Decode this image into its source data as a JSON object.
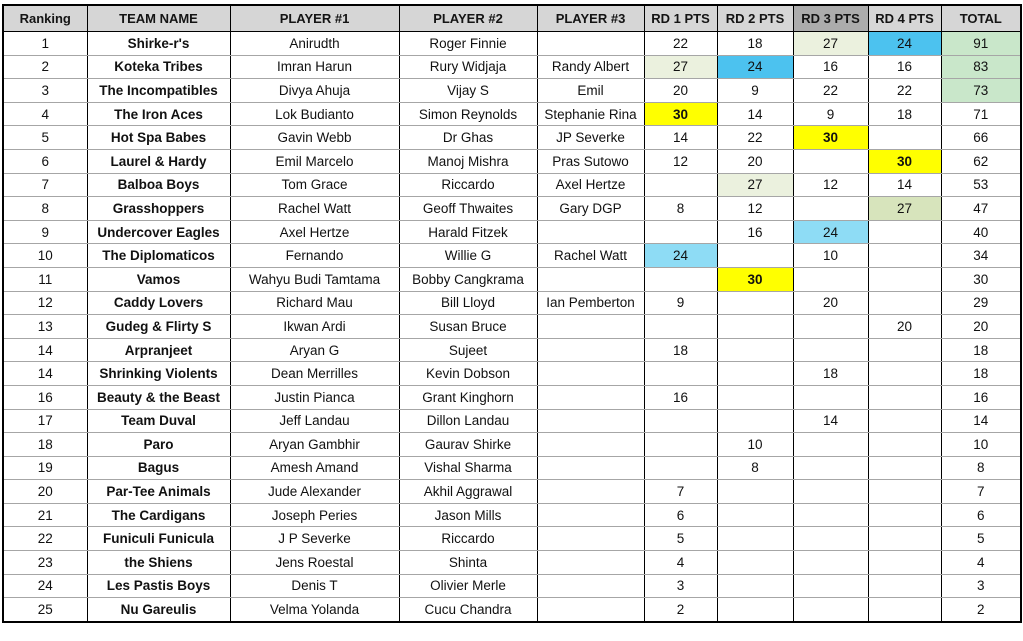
{
  "colors": {
    "header_bg": "#d6d6d6",
    "header_bg_active": "#acacac",
    "yellow": "#ffff00",
    "sky_blue": "#4cc2ef",
    "light_blue": "#8edcf5",
    "pale_green": "#ebf1de",
    "mid_green": "#d7e4bc",
    "total_green": "#c9e7ca",
    "grid_dark": "#000000",
    "grid_light": "#a6a6a6"
  },
  "table": {
    "columns": [
      {
        "key": "rank",
        "label": "Ranking"
      },
      {
        "key": "team",
        "label": "TEAM NAME"
      },
      {
        "key": "p1",
        "label": "PLAYER #1"
      },
      {
        "key": "p2",
        "label": "PLAYER #2"
      },
      {
        "key": "p3",
        "label": "PLAYER #3"
      },
      {
        "key": "rd1",
        "label": "RD 1 PTS"
      },
      {
        "key": "rd2",
        "label": "RD 2 PTS"
      },
      {
        "key": "rd3",
        "label": "RD 3 PTS",
        "variant": "active"
      },
      {
        "key": "rd4",
        "label": "RD 4 PTS"
      },
      {
        "key": "total",
        "label": "TOTAL"
      }
    ],
    "rows": [
      {
        "rank": "1",
        "team": "Shirke-r's",
        "p1": "Anirudth",
        "p2": "Roger Finnie",
        "p3": "",
        "rd1": {
          "v": "22"
        },
        "rd2": {
          "v": "18"
        },
        "rd3": {
          "v": "27",
          "hl": "pale_green"
        },
        "rd4": {
          "v": "24",
          "hl": "sky_blue"
        },
        "total": {
          "v": "91",
          "hl": "total_green"
        }
      },
      {
        "rank": "2",
        "team": "Koteka Tribes",
        "p1": "Imran Harun",
        "p2": "Rury Widjaja",
        "p3": "Randy Albert",
        "rd1": {
          "v": "27",
          "hl": "pale_green"
        },
        "rd2": {
          "v": "24",
          "hl": "sky_blue"
        },
        "rd3": {
          "v": "16"
        },
        "rd4": {
          "v": "16"
        },
        "total": {
          "v": "83",
          "hl": "total_green"
        }
      },
      {
        "rank": "3",
        "team": "The Incompatibles",
        "p1": "Divya Ahuja",
        "p2": "Vijay S",
        "p3": "Emil",
        "rd1": {
          "v": "20"
        },
        "rd2": {
          "v": "9"
        },
        "rd3": {
          "v": "22"
        },
        "rd4": {
          "v": "22"
        },
        "total": {
          "v": "73",
          "hl": "total_green"
        }
      },
      {
        "rank": "4",
        "team": "The Iron Aces",
        "p1": "Lok Budianto",
        "p2": "Simon Reynolds",
        "p3": "Stephanie Rina",
        "rd1": {
          "v": "30",
          "hl": "yellow"
        },
        "rd2": {
          "v": "14"
        },
        "rd3": {
          "v": "9"
        },
        "rd4": {
          "v": "18"
        },
        "total": {
          "v": "71"
        }
      },
      {
        "rank": "5",
        "team": "Hot Spa Babes",
        "p1": "Gavin Webb",
        "p2": "Dr Ghas",
        "p3": "JP Severke",
        "rd1": {
          "v": "14"
        },
        "rd2": {
          "v": "22"
        },
        "rd3": {
          "v": "30",
          "hl": "yellow"
        },
        "rd4": {
          "v": ""
        },
        "total": {
          "v": "66"
        }
      },
      {
        "rank": "6",
        "team": "Laurel & Hardy",
        "p1": "Emil Marcelo",
        "p2": "Manoj Mishra",
        "p3": "Pras Sutowo",
        "rd1": {
          "v": "12"
        },
        "rd2": {
          "v": "20"
        },
        "rd3": {
          "v": ""
        },
        "rd4": {
          "v": "30",
          "hl": "yellow"
        },
        "total": {
          "v": "62"
        }
      },
      {
        "rank": "7",
        "team": "Balboa Boys",
        "p1": "Tom Grace",
        "p2": "Riccardo",
        "p3": "Axel Hertze",
        "rd1": {
          "v": ""
        },
        "rd2": {
          "v": "27",
          "hl": "pale_green"
        },
        "rd3": {
          "v": "12"
        },
        "rd4": {
          "v": "14"
        },
        "total": {
          "v": "53"
        }
      },
      {
        "rank": "8",
        "team": "Grasshoppers",
        "p1": "Rachel Watt",
        "p2": "Geoff Thwaites",
        "p3": "Gary DGP",
        "rd1": {
          "v": "8"
        },
        "rd2": {
          "v": "12"
        },
        "rd3": {
          "v": ""
        },
        "rd4": {
          "v": "27",
          "hl": "mid_green"
        },
        "total": {
          "v": "47"
        }
      },
      {
        "rank": "9",
        "team": "Undercover Eagles",
        "p1": "Axel Hertze",
        "p2": "Harald Fitzek",
        "p3": "",
        "rd1": {
          "v": ""
        },
        "rd2": {
          "v": "16"
        },
        "rd3": {
          "v": "24",
          "hl": "light_blue"
        },
        "rd4": {
          "v": ""
        },
        "total": {
          "v": "40"
        }
      },
      {
        "rank": "10",
        "team": "The Diplomaticos",
        "p1": "Fernando",
        "p2": "Willie G",
        "p3": "Rachel Watt",
        "rd1": {
          "v": "24",
          "hl": "light_blue"
        },
        "rd2": {
          "v": ""
        },
        "rd3": {
          "v": "10"
        },
        "rd4": {
          "v": ""
        },
        "total": {
          "v": "34"
        }
      },
      {
        "rank": "11",
        "team": "Vamos",
        "p1": "Wahyu Budi Tamtama",
        "p2": "Bobby Cangkrama",
        "p3": "",
        "rd1": {
          "v": ""
        },
        "rd2": {
          "v": "30",
          "hl": "yellow"
        },
        "rd3": {
          "v": ""
        },
        "rd4": {
          "v": ""
        },
        "total": {
          "v": "30"
        }
      },
      {
        "rank": "12",
        "team": "Caddy Lovers",
        "p1": "Richard Mau",
        "p2": "Bill Lloyd",
        "p3": "Ian Pemberton",
        "rd1": {
          "v": "9"
        },
        "rd2": {
          "v": ""
        },
        "rd3": {
          "v": "20"
        },
        "rd4": {
          "v": ""
        },
        "total": {
          "v": "29"
        }
      },
      {
        "rank": "13",
        "team": "Gudeg & Flirty S",
        "p1": "Ikwan Ardi",
        "p2": "Susan Bruce",
        "p3": "",
        "rd1": {
          "v": ""
        },
        "rd2": {
          "v": ""
        },
        "rd3": {
          "v": ""
        },
        "rd4": {
          "v": "20"
        },
        "total": {
          "v": "20"
        }
      },
      {
        "rank": "14",
        "team": "Arpranjeet",
        "p1": "Aryan G",
        "p2": "Sujeet",
        "p3": "",
        "rd1": {
          "v": "18"
        },
        "rd2": {
          "v": ""
        },
        "rd3": {
          "v": ""
        },
        "rd4": {
          "v": ""
        },
        "total": {
          "v": "18"
        }
      },
      {
        "rank": "14",
        "team": "Shrinking Violents",
        "p1": "Dean Merrilles",
        "p2": "Kevin Dobson",
        "p3": "",
        "rd1": {
          "v": ""
        },
        "rd2": {
          "v": ""
        },
        "rd3": {
          "v": "18"
        },
        "rd4": {
          "v": ""
        },
        "total": {
          "v": "18"
        }
      },
      {
        "rank": "16",
        "team": "Beauty & the Beast",
        "p1": "Justin Pianca",
        "p2": "Grant Kinghorn",
        "p3": "",
        "rd1": {
          "v": "16"
        },
        "rd2": {
          "v": ""
        },
        "rd3": {
          "v": ""
        },
        "rd4": {
          "v": ""
        },
        "total": {
          "v": "16"
        }
      },
      {
        "rank": "17",
        "team": "Team Duval",
        "p1": "Jeff Landau",
        "p2": "Dillon Landau",
        "p3": "",
        "rd1": {
          "v": ""
        },
        "rd2": {
          "v": ""
        },
        "rd3": {
          "v": "14"
        },
        "rd4": {
          "v": ""
        },
        "total": {
          "v": "14"
        }
      },
      {
        "rank": "18",
        "team": "Paro",
        "p1": "Aryan Gambhir",
        "p2": "Gaurav Shirke",
        "p3": "",
        "rd1": {
          "v": ""
        },
        "rd2": {
          "v": "10"
        },
        "rd3": {
          "v": ""
        },
        "rd4": {
          "v": ""
        },
        "total": {
          "v": "10"
        }
      },
      {
        "rank": "19",
        "team": "Bagus",
        "p1": "Amesh Amand",
        "p2": "Vishal Sharma",
        "p3": "",
        "rd1": {
          "v": ""
        },
        "rd2": {
          "v": "8"
        },
        "rd3": {
          "v": ""
        },
        "rd4": {
          "v": ""
        },
        "total": {
          "v": "8"
        }
      },
      {
        "rank": "20",
        "team": "Par-Tee Animals",
        "p1": "Jude Alexander",
        "p2": "Akhil Aggrawal",
        "p3": "",
        "rd1": {
          "v": "7"
        },
        "rd2": {
          "v": ""
        },
        "rd3": {
          "v": ""
        },
        "rd4": {
          "v": ""
        },
        "total": {
          "v": "7"
        }
      },
      {
        "rank": "21",
        "team": "The Cardigans",
        "p1": "Joseph Peries",
        "p2": "Jason Mills",
        "p3": "",
        "rd1": {
          "v": "6"
        },
        "rd2": {
          "v": ""
        },
        "rd3": {
          "v": ""
        },
        "rd4": {
          "v": ""
        },
        "total": {
          "v": "6"
        }
      },
      {
        "rank": "22",
        "team": "Funiculi Funicula",
        "p1": "J P Severke",
        "p2": "Riccardo",
        "p3": "",
        "rd1": {
          "v": "5"
        },
        "rd2": {
          "v": ""
        },
        "rd3": {
          "v": ""
        },
        "rd4": {
          "v": ""
        },
        "total": {
          "v": "5"
        }
      },
      {
        "rank": "23",
        "team": "the Shiens",
        "p1": "Jens Roestal",
        "p2": "Shinta",
        "p3": "",
        "rd1": {
          "v": "4"
        },
        "rd2": {
          "v": ""
        },
        "rd3": {
          "v": ""
        },
        "rd4": {
          "v": ""
        },
        "total": {
          "v": "4"
        }
      },
      {
        "rank": "24",
        "team": "Les Pastis Boys",
        "p1": "Denis T",
        "p2": "Olivier Merle",
        "p3": "",
        "rd1": {
          "v": "3"
        },
        "rd2": {
          "v": ""
        },
        "rd3": {
          "v": ""
        },
        "rd4": {
          "v": ""
        },
        "total": {
          "v": "3"
        }
      },
      {
        "rank": "25",
        "team": "Nu Gareulis",
        "p1": "Velma Yolanda",
        "p2": "Cucu Chandra",
        "p3": "",
        "rd1": {
          "v": "2"
        },
        "rd2": {
          "v": ""
        },
        "rd3": {
          "v": ""
        },
        "rd4": {
          "v": ""
        },
        "total": {
          "v": "2"
        }
      }
    ]
  }
}
